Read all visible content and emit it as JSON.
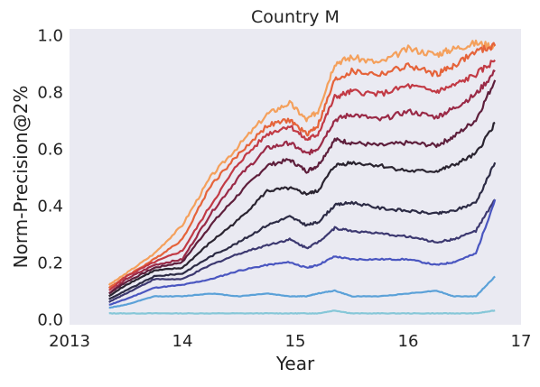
{
  "chart_data": {
    "type": "line",
    "title": "Country M",
    "xlabel": "Year",
    "ylabel": "Norm-Precision@2%",
    "xlim": [
      2013,
      2017
    ],
    "ylim": [
      -0.02,
      1.02
    ],
    "x_ticks": [
      {
        "value": 2013,
        "label": "2013"
      },
      {
        "value": 2014,
        "label": "14"
      },
      {
        "value": 2015,
        "label": "15"
      },
      {
        "value": 2016,
        "label": "16"
      },
      {
        "value": 2017,
        "label": "17"
      }
    ],
    "y_ticks": [
      {
        "value": 0.0,
        "label": "0.0"
      },
      {
        "value": 0.2,
        "label": "0.2"
      },
      {
        "value": 0.4,
        "label": "0.4"
      },
      {
        "value": 0.6,
        "label": "0.6"
      },
      {
        "value": 0.8,
        "label": "0.8"
      },
      {
        "value": 1.0,
        "label": "1.0"
      }
    ],
    "grid": false,
    "background": "#eaeaf2",
    "x": [
      2013.35,
      2013.5,
      2013.75,
      2014.0,
      2014.25,
      2014.5,
      2014.75,
      2014.95,
      2015.1,
      2015.2,
      2015.35,
      2015.5,
      2015.75,
      2016.0,
      2016.25,
      2016.4,
      2016.6,
      2016.77
    ],
    "series": [
      {
        "color": "#f4a05c",
        "values": [
          0.12,
          0.16,
          0.23,
          0.33,
          0.5,
          0.61,
          0.72,
          0.76,
          0.7,
          0.73,
          0.9,
          0.92,
          0.9,
          0.95,
          0.93,
          0.95,
          0.97,
          0.96
        ]
      },
      {
        "color": "#e5633a",
        "values": [
          0.11,
          0.15,
          0.21,
          0.28,
          0.47,
          0.58,
          0.68,
          0.7,
          0.65,
          0.68,
          0.84,
          0.87,
          0.86,
          0.89,
          0.86,
          0.89,
          0.94,
          0.96
        ]
      },
      {
        "color": "#c23a45",
        "values": [
          0.1,
          0.15,
          0.2,
          0.24,
          0.4,
          0.55,
          0.65,
          0.68,
          0.63,
          0.65,
          0.78,
          0.8,
          0.79,
          0.82,
          0.8,
          0.82,
          0.86,
          0.91
        ]
      },
      {
        "color": "#9a2a47",
        "values": [
          0.09,
          0.14,
          0.19,
          0.21,
          0.37,
          0.5,
          0.6,
          0.62,
          0.58,
          0.6,
          0.7,
          0.72,
          0.7,
          0.73,
          0.71,
          0.74,
          0.79,
          0.87
        ]
      },
      {
        "color": "#5e1f3c",
        "values": [
          0.09,
          0.13,
          0.18,
          0.2,
          0.33,
          0.44,
          0.54,
          0.56,
          0.52,
          0.54,
          0.63,
          0.62,
          0.61,
          0.62,
          0.61,
          0.64,
          0.7,
          0.84
        ]
      },
      {
        "color": "#2a2430",
        "values": [
          0.08,
          0.12,
          0.17,
          0.18,
          0.27,
          0.35,
          0.45,
          0.46,
          0.44,
          0.45,
          0.54,
          0.55,
          0.54,
          0.52,
          0.52,
          0.54,
          0.58,
          0.69
        ]
      },
      {
        "color": "#2c2b45",
        "values": [
          0.07,
          0.1,
          0.15,
          0.16,
          0.22,
          0.27,
          0.33,
          0.36,
          0.33,
          0.34,
          0.4,
          0.41,
          0.39,
          0.38,
          0.37,
          0.38,
          0.41,
          0.55
        ]
      },
      {
        "color": "#3c3870",
        "values": [
          0.06,
          0.09,
          0.14,
          0.14,
          0.19,
          0.23,
          0.26,
          0.28,
          0.25,
          0.27,
          0.32,
          0.31,
          0.3,
          0.29,
          0.27,
          0.28,
          0.31,
          0.42
        ]
      },
      {
        "color": "#4a56c0",
        "values": [
          0.05,
          0.07,
          0.11,
          0.12,
          0.14,
          0.17,
          0.19,
          0.2,
          0.18,
          0.19,
          0.22,
          0.21,
          0.21,
          0.21,
          0.19,
          0.2,
          0.23,
          0.42
        ]
      },
      {
        "color": "#5ba1d8",
        "values": [
          0.04,
          0.05,
          0.08,
          0.08,
          0.09,
          0.08,
          0.09,
          0.08,
          0.08,
          0.09,
          0.1,
          0.08,
          0.08,
          0.09,
          0.1,
          0.08,
          0.08,
          0.15
        ]
      },
      {
        "color": "#86c7d8",
        "values": [
          0.02,
          0.02,
          0.02,
          0.02,
          0.02,
          0.02,
          0.02,
          0.02,
          0.02,
          0.02,
          0.03,
          0.02,
          0.02,
          0.02,
          0.02,
          0.02,
          0.02,
          0.03
        ]
      }
    ]
  }
}
